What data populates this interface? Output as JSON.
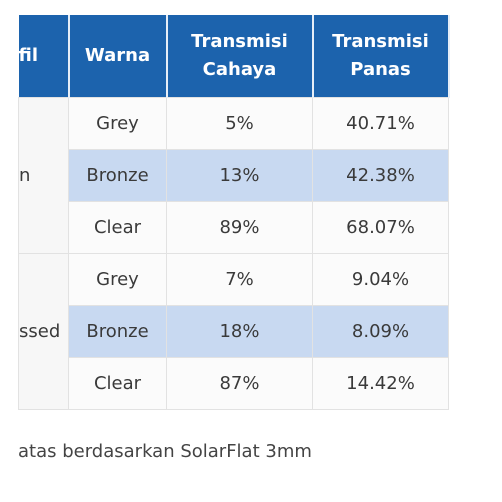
{
  "table": {
    "header": [
      "fil",
      "Warna",
      [
        "Transmisi",
        "Cahaya"
      ],
      [
        "Transmisi",
        "Panas"
      ]
    ],
    "groups": [
      {
        "label": "n",
        "rows": [
          [
            "Grey",
            "5%",
            "40.71%"
          ],
          [
            "Bronze",
            "13%",
            "42.38%"
          ],
          [
            "Clear",
            "89%",
            "68.07%"
          ]
        ]
      },
      {
        "label": "ssed",
        "rows": [
          [
            "Grey",
            "7%",
            "9.04%"
          ],
          [
            "Bronze",
            "18%",
            "8.09%"
          ],
          [
            "Clear",
            "87%",
            "14.42%"
          ]
        ]
      }
    ]
  },
  "caption": "atas berdasarkan SolarFlat 3mm"
}
